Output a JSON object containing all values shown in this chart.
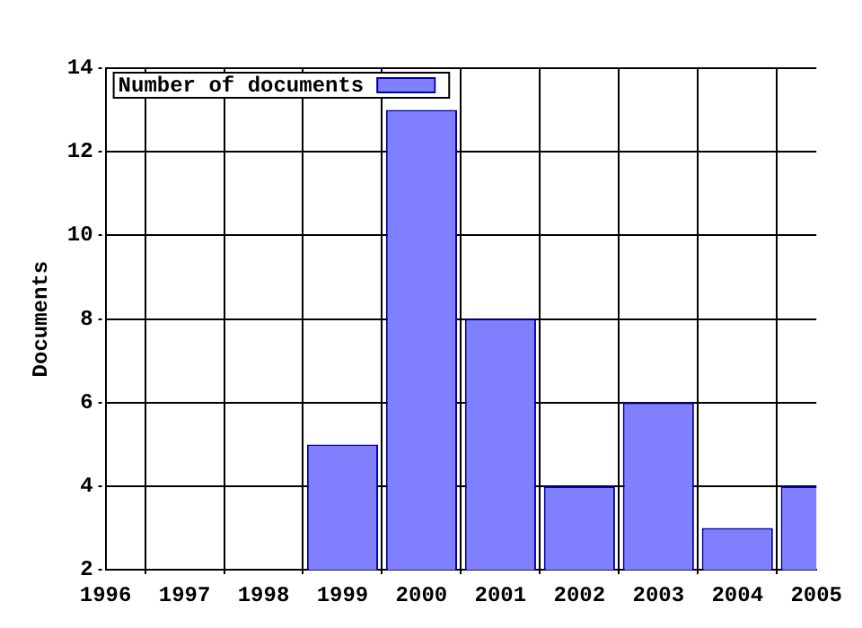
{
  "chart_data": {
    "type": "bar",
    "ylabel": "Documents",
    "x": [
      1999,
      2000,
      2001,
      2002,
      2003,
      2004,
      2005
    ],
    "series": [
      {
        "name": "Number of documents",
        "color": "#8080ff",
        "values": [
          5,
          13,
          8,
          4,
          6,
          3,
          4
        ]
      }
    ],
    "xlim": [
      1996,
      2005
    ],
    "xticks": [
      1996,
      1997,
      1998,
      1999,
      2000,
      2001,
      2002,
      2003,
      2004,
      2005
    ],
    "ylim": [
      2,
      14
    ],
    "yticks": [
      2,
      4,
      6,
      8,
      10,
      12,
      14
    ],
    "grid": true,
    "legend": "top left"
  }
}
